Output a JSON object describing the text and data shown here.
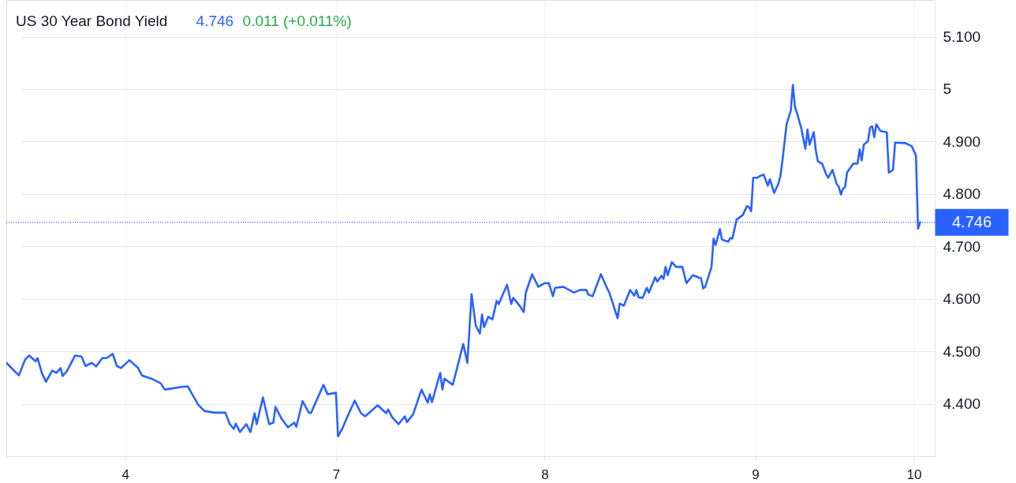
{
  "chart_data": {
    "type": "line",
    "title": "US 30 Year Bond Yield",
    "annotations": [
      "4.746",
      "0.011 (+0.011%)"
    ],
    "categories": [
      null,
      null,
      null,
      null,
      null,
      null,
      null,
      null,
      null,
      null,
      null,
      null,
      null,
      null,
      null,
      null,
      null,
      null,
      null,
      null,
      null,
      null,
      null,
      null,
      null,
      null,
      null,
      null,
      null,
      null,
      null,
      null,
      null,
      null,
      null,
      null,
      null,
      null,
      null,
      null,
      null,
      null,
      null,
      null,
      null,
      null,
      null,
      null,
      null,
      null,
      null,
      null,
      null,
      null,
      null,
      null,
      null,
      "4",
      null,
      null,
      null,
      null,
      null,
      null,
      null,
      null,
      null,
      null,
      null,
      null,
      null,
      null,
      null,
      null,
      null,
      null,
      null,
      null,
      null,
      null,
      null,
      null,
      null,
      null,
      null,
      null,
      null,
      null,
      null,
      null,
      null,
      null,
      null,
      null,
      null,
      null,
      null,
      null,
      null,
      null,
      null,
      null,
      null,
      null,
      null,
      null,
      null,
      null,
      null,
      null,
      null,
      null,
      null,
      null,
      null,
      null,
      null,
      null,
      null,
      null,
      null,
      null,
      null,
      null,
      null,
      null,
      null,
      null,
      null,
      null,
      null,
      null,
      null,
      null,
      null,
      null,
      null,
      null,
      null,
      null,
      null,
      null,
      null,
      null,
      null,
      null,
      null,
      null,
      null,
      null,
      null,
      null,
      null,
      null,
      null,
      null,
      null,
      null,
      "7",
      null,
      null,
      null,
      null,
      null,
      null,
      null,
      null,
      null,
      null,
      null,
      null,
      null,
      null,
      null,
      null,
      null,
      null,
      null,
      null,
      null,
      null,
      null,
      null,
      null,
      null,
      null,
      null,
      null,
      null,
      null,
      null,
      null,
      null,
      null,
      null,
      null,
      null,
      null,
      null,
      null,
      null,
      null,
      null,
      null,
      null,
      null,
      null,
      null,
      null,
      null,
      null,
      null,
      null,
      null,
      null,
      null,
      null,
      null,
      null,
      null,
      null,
      null,
      null,
      null,
      null,
      null,
      null,
      null,
      null,
      null,
      null,
      null,
      null,
      null,
      null,
      null,
      null,
      null,
      null,
      null,
      null,
      null,
      null,
      null,
      null,
      null,
      null,
      null,
      null,
      null,
      null,
      null,
      null,
      null,
      null,
      null,
      null,
      null,
      "8",
      null,
      null,
      null,
      null,
      null,
      null,
      null,
      null,
      null,
      null,
      null,
      null,
      null,
      null,
      null,
      null,
      null,
      null,
      null,
      null,
      null,
      null,
      null,
      null,
      null,
      null,
      null,
      null,
      null,
      null,
      null,
      null,
      null,
      null,
      null,
      null,
      null,
      null,
      null,
      null,
      null,
      null,
      null,
      null,
      null,
      null,
      null,
      null,
      null,
      null,
      null,
      null,
      null,
      null,
      null,
      null,
      null,
      null,
      null,
      null,
      null,
      null,
      null,
      null,
      null,
      null,
      null,
      null,
      null,
      null,
      null,
      null,
      null,
      null,
      null,
      null,
      null,
      null,
      null,
      null,
      null,
      null,
      null,
      null,
      null,
      null,
      null,
      null,
      null,
      null,
      null,
      null,
      null,
      null,
      null,
      null,
      null,
      null,
      null,
      null,
      "9",
      null,
      null,
      null,
      null,
      null,
      null,
      null,
      null,
      null,
      null,
      null,
      null,
      null,
      null,
      null,
      null,
      null,
      null,
      null,
      null,
      null,
      null,
      null,
      null,
      null,
      null,
      null,
      null,
      null,
      null,
      null,
      null,
      null,
      null,
      null,
      null,
      null,
      null,
      null,
      null,
      null,
      null,
      null,
      null,
      null,
      null,
      null,
      null,
      null,
      null,
      null,
      null,
      null,
      null,
      null,
      null,
      null,
      null,
      null,
      null,
      null,
      null,
      null,
      null,
      null,
      null,
      null,
      null,
      null,
      null,
      null,
      null,
      null,
      null,
      null,
      "10",
      null,
      null,
      null
    ],
    "ylim": [
      4.3,
      5.17
    ],
    "yticks": [
      {
        "value": 4.4,
        "label": "4.400"
      },
      {
        "value": 4.5,
        "label": "4.500"
      },
      {
        "value": 4.6,
        "label": "4.600"
      },
      {
        "value": 4.7,
        "label": "4.700"
      },
      {
        "value": 4.8,
        "label": "4.800"
      },
      {
        "value": 4.9,
        "label": "4.900"
      },
      5,
      {
        "value": 5.1,
        "label": "5.100"
      }
    ],
    "grid": true,
    "line_style": "solid",
    "ref_lines": [
      {
        "axis": "y",
        "value": 4.746,
        "label": "4.746",
        "color": "#2962ff",
        "line_style": "dotted"
      }
    ],
    "series": [
      {
        "color": "#2962ff",
        "values": [
          4.478,
          null,
          null,
          4.466,
          null,
          null,
          4.454,
          null,
          null,
          4.484,
          null,
          4.492,
          null,
          null,
          4.481,
          4.487,
          null,
          4.459,
          null,
          4.442,
          null,
          null,
          4.463,
          null,
          4.459,
          null,
          4.468,
          4.453,
          null,
          4.462,
          null,
          null,
          null,
          4.492,
          null,
          null,
          4.49,
          null,
          4.472,
          null,
          null,
          4.478,
          null,
          4.471,
          null,
          null,
          4.487,
          null,
          4.487,
          null,
          null,
          4.495,
          null,
          4.472,
          null,
          4.468,
          null,
          null,
          null,
          4.483,
          null,
          null,
          null,
          4.469,
          null,
          4.454,
          null,
          null,
          null,
          null,
          4.447,
          null,
          null,
          null,
          4.439,
          null,
          4.427,
          null,
          null,
          null,
          null,
          null,
          null,
          null,
          4.432,
          null,
          null,
          4.433,
          null,
          null,
          null,
          null,
          4.398,
          null,
          null,
          4.386,
          null,
          null,
          null,
          null,
          4.383,
          null,
          null,
          null,
          null,
          4.383,
          null,
          4.362,
          null,
          4.352,
          4.362,
          null,
          4.346,
          null,
          null,
          4.361,
          null,
          4.346,
          null,
          4.382,
          4.361,
          null,
          null,
          4.412,
          null,
          null,
          4.361,
          null,
          4.364,
          4.394,
          null,
          null,
          4.371,
          null,
          null,
          4.355,
          null,
          null,
          4.364,
          4.356,
          null,
          null,
          4.405,
          null,
          null,
          4.383,
          4.382,
          null,
          null,
          null,
          null,
          null,
          4.436,
          null,
          4.418,
          null,
          null,
          null,
          4.421,
          4.338,
          null,
          4.352,
          null,
          4.371,
          null,
          null,
          null,
          4.406,
          null,
          null,
          4.382,
          null,
          4.376,
          null,
          null,
          null,
          null,
          null,
          4.397,
          null,
          null,
          null,
          4.382,
          4.389,
          null,
          4.374,
          null,
          null,
          4.361,
          null,
          null,
          4.376,
          4.365,
          null,
          null,
          4.38,
          null,
          null,
          null,
          4.427,
          null,
          null,
          4.402,
          4.418,
          4.403,
          null,
          null,
          null,
          4.459,
          4.427,
          4.448,
          null,
          null,
          null,
          4.436,
          null,
          null,
          null,
          null,
          4.514,
          null,
          4.478,
          null,
          4.609,
          null,
          4.549,
          null,
          4.534,
          4.57,
          4.546,
          null,
          4.566,
          null,
          4.561,
          null,
          4.596,
          4.59,
          null,
          null,
          null,
          4.627,
          null,
          4.59,
          4.602,
          null,
          null,
          4.587,
          null,
          4.575,
          4.612,
          null,
          null,
          4.647,
          null,
          null,
          4.623,
          null,
          null,
          4.63,
          null,
          4.63,
          null,
          4.605,
          4.621,
          null,
          null,
          null,
          4.623,
          null,
          null,
          null,
          null,
          4.612,
          null,
          null,
          4.617,
          null,
          null,
          4.617,
          4.608,
          null,
          4.605,
          null,
          null,
          null,
          4.647,
          null,
          null,
          4.62,
          4.612,
          null,
          null,
          null,
          4.563,
          4.591,
          null,
          4.587,
          null,
          null,
          4.617,
          null,
          4.606,
          4.617,
          4.603,
          null,
          4.602,
          null,
          4.621,
          4.612,
          null,
          null,
          4.641,
          4.633,
          null,
          4.644,
          4.638,
          4.661,
          4.645,
          null,
          4.67,
          null,
          4.661,
          null,
          null,
          4.661,
          null,
          4.63,
          null,
          null,
          4.645,
          null,
          null,
          null,
          4.639,
          4.62,
          4.623,
          null,
          null,
          4.661,
          4.715,
          4.703,
          null,
          4.733,
          4.713,
          null,
          null,
          4.709,
          4.716,
          4.715,
          null,
          4.751,
          null,
          null,
          4.76,
          null,
          4.777,
          4.775,
          4.767,
          4.831,
          null,
          4.831,
          4.834,
          null,
          4.837,
          null,
          4.816,
          4.828,
          null,
          4.802,
          null,
          4.819,
          4.834,
          4.864,
          null,
          4.933,
          null,
          4.959,
          5.008,
          4.966,
          4.954,
          null,
          4.926,
          null,
          4.886,
          4.923,
          4.894,
          null,
          4.918,
          4.883,
          4.862,
          null,
          4.858,
          null,
          4.837,
          4.831,
          null,
          4.846,
          null,
          4.819,
          4.814,
          4.799,
          4.81,
          4.813,
          4.841,
          null,
          null,
          4.858,
          null,
          4.858,
          4.885,
          4.864,
          4.894,
          null,
          4.901,
          4.927,
          4.929,
          4.908,
          4.933,
          null,
          4.92,
          null,
          null,
          4.918,
          4.841,
          null,
          4.846,
          4.898,
          null,
          null,
          null,
          null,
          4.897,
          null,
          null,
          4.891,
          null,
          4.873,
          4.734,
          4.746
        ]
      }
    ]
  }
}
